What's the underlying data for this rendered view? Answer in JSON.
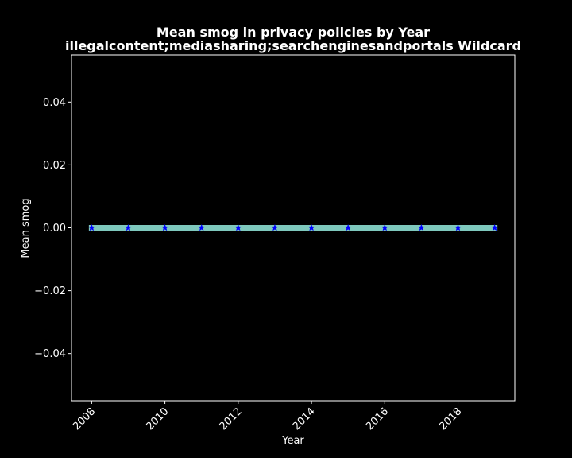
{
  "chart_data": {
    "type": "line",
    "title": "Mean smog in privacy policies by Year",
    "subtitle": "illegalcontent;mediasharing;searchenginesandportals Wildcard",
    "xlabel": "Year",
    "ylabel": "Mean smog",
    "xlim": [
      2007.45,
      2019.55
    ],
    "ylim": [
      -0.055,
      0.055
    ],
    "x_ticks": [
      2008,
      2010,
      2012,
      2014,
      2016,
      2018
    ],
    "y_ticks": [
      0.04,
      0.02,
      0.0,
      -0.02,
      -0.04
    ],
    "x_tick_labels": [
      "2008",
      "2010",
      "2012",
      "2014",
      "2016",
      "2018"
    ],
    "y_tick_labels": [
      "0.04",
      "0.02",
      "0.00",
      "−0.02",
      "−0.04"
    ],
    "grid": false,
    "series": [
      {
        "x": [
          2008,
          2009,
          2010,
          2011,
          2012,
          2013,
          2014,
          2015,
          2016,
          2017,
          2018,
          2019
        ],
        "values": [
          0,
          0,
          0,
          0,
          0,
          0,
          0,
          0,
          0,
          0,
          0,
          0
        ],
        "line_color": "#7ec8bd",
        "marker": "star",
        "marker_color": "#0000ff"
      }
    ],
    "colors": {
      "background": "#000000",
      "axes": "#ffffff",
      "text": "#ffffff"
    }
  }
}
